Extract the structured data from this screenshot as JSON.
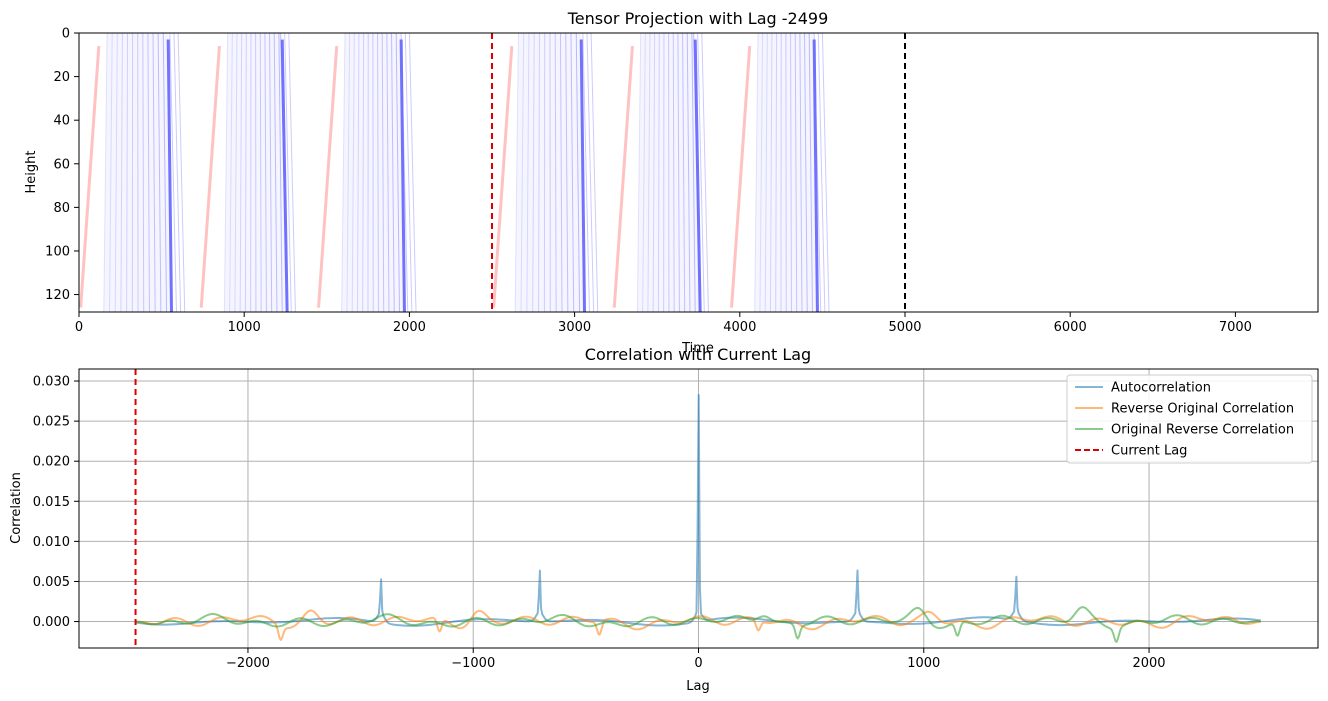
{
  "chart_data": [
    {
      "type": "heatmap",
      "title": "Tensor Projection with Lag -2499",
      "xlabel": "Time",
      "ylabel": "Height",
      "xlim": [
        0,
        7500
      ],
      "ylim": [
        128,
        0
      ],
      "xticks": [
        0,
        1000,
        2000,
        3000,
        4000,
        5000,
        6000,
        7000
      ],
      "yticks": [
        0,
        20,
        40,
        60,
        80,
        100,
        120
      ],
      "colormap": "bwr",
      "vlines": [
        {
          "x": 2500,
          "color": "#dd0000",
          "style": "dashed"
        },
        {
          "x": 5000,
          "color": "#000000",
          "style": "dashed"
        }
      ],
      "red_stripes": [
        {
          "x_bottom": 10,
          "x_top": 120
        },
        {
          "x_bottom": 740,
          "x_top": 850
        },
        {
          "x_bottom": 1450,
          "x_top": 1560
        },
        {
          "x_bottom": 2510,
          "x_top": 2620
        },
        {
          "x_bottom": 3240,
          "x_top": 3350
        },
        {
          "x_bottom": 3950,
          "x_top": 4060
        }
      ],
      "blue_bands": [
        {
          "x_start": 150,
          "x_end": 640,
          "strong_bottom": 560,
          "strong_top": 540
        },
        {
          "x_start": 880,
          "x_end": 1310,
          "strong_bottom": 1260,
          "strong_top": 1230
        },
        {
          "x_start": 1590,
          "x_end": 2040,
          "strong_bottom": 1970,
          "strong_top": 1950
        },
        {
          "x_start": 2640,
          "x_end": 3140,
          "strong_bottom": 3060,
          "strong_top": 3040
        },
        {
          "x_start": 3380,
          "x_end": 3810,
          "strong_bottom": 3760,
          "strong_top": 3730
        },
        {
          "x_start": 4090,
          "x_end": 4540,
          "strong_bottom": 4470,
          "strong_top": 4450
        }
      ]
    },
    {
      "type": "line",
      "title": "Correlation with Current Lag",
      "xlabel": "Lag",
      "ylabel": "Correlation",
      "xlim": [
        -2750,
        2750
      ],
      "ylim": [
        -0.0033,
        0.0315
      ],
      "xticks": [
        -2000,
        -1000,
        0,
        1000,
        2000
      ],
      "xtick_labels": [
        "−2000",
        "−1000",
        "0",
        "1000",
        "2000"
      ],
      "yticks": [
        0.0,
        0.005,
        0.01,
        0.015,
        0.02,
        0.025,
        0.03
      ],
      "ytick_labels": [
        "0.000",
        "0.005",
        "0.010",
        "0.015",
        "0.020",
        "0.025",
        "0.030"
      ],
      "grid": true,
      "legend_position": "top-right",
      "current_lag": -2499,
      "series": [
        {
          "name": "Autocorrelation",
          "color": "#1f77b4",
          "x_range": [
            -2499,
            2499
          ],
          "peaks": [
            {
              "x": -1410,
              "y": 0.0055
            },
            {
              "x": -705,
              "y": 0.0065
            },
            {
              "x": 0,
              "y": 0.0298
            },
            {
              "x": 705,
              "y": 0.0065
            },
            {
              "x": 1410,
              "y": 0.0055
            }
          ],
          "baseline_amplitude": 0.0009
        },
        {
          "name": "Reverse Original Correlation",
          "color": "#ff7f0e",
          "x_range": [
            -2499,
            2499
          ],
          "amplitude": 0.0013,
          "dips": [
            {
              "x": -1855,
              "y": -0.0017
            },
            {
              "x": -1150,
              "y": -0.0017
            },
            {
              "x": -440,
              "y": -0.0017
            },
            {
              "x": 265,
              "y": -0.0013
            }
          ],
          "peaks": [
            {
              "x": -1720,
              "y": 0.0018
            },
            {
              "x": -980,
              "y": 0.0019
            },
            {
              "x": 1030,
              "y": 0.0013
            }
          ]
        },
        {
          "name": "Original Reverse Correlation",
          "color": "#2ca02c",
          "x_range": [
            -2499,
            2499
          ],
          "amplitude": 0.0012,
          "dips": [
            {
              "x": 440,
              "y": -0.0017
            },
            {
              "x": 1150,
              "y": -0.0017
            },
            {
              "x": 1855,
              "y": -0.0017
            }
          ],
          "peaks": [
            {
              "x": 290,
              "y": 0.0018
            },
            {
              "x": 980,
              "y": 0.0017
            },
            {
              "x": 1700,
              "y": 0.0019
            }
          ]
        }
      ],
      "legend": [
        {
          "label": "Autocorrelation",
          "color": "#1f77b4",
          "style": "solid"
        },
        {
          "label": "Reverse Original Correlation",
          "color": "#ff7f0e",
          "style": "solid"
        },
        {
          "label": "Original Reverse Correlation",
          "color": "#2ca02c",
          "style": "solid"
        },
        {
          "label": "Current Lag",
          "color": "#dd0000",
          "style": "dashed"
        }
      ]
    }
  ]
}
